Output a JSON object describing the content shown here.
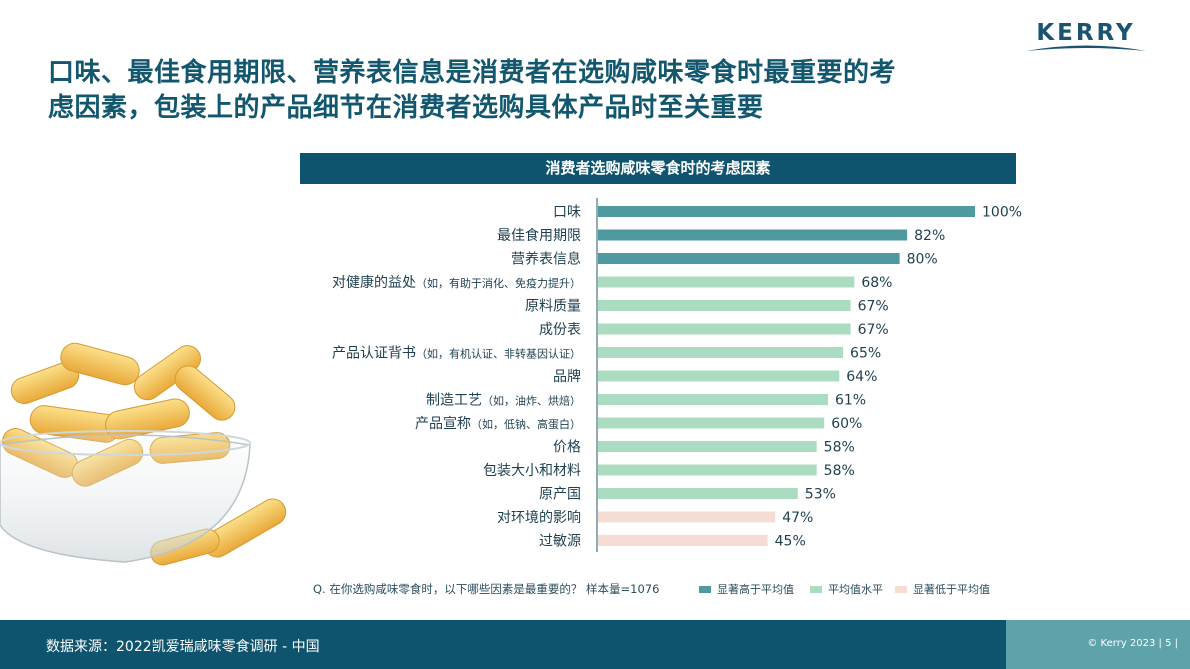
{
  "brand": {
    "logo_text": "KERRY"
  },
  "title_lines": [
    "口味、最佳食用期限、营养表信息是消费者在选购咸味零食时最重要的考",
    "虑因素，包装上的产品细节在消费者选购具体产品时至关重要"
  ],
  "chart_data": {
    "type": "bar",
    "orientation": "horizontal",
    "title": "消费者选购咸味零食时的考虑因素",
    "categories": [
      "口味",
      "最佳食用期限",
      "营养表信息",
      "对健康的益处（如，有助于消化、免疫力提升）",
      "原料质量",
      "成份表",
      "产品认证背书（如，有机认证、非转基因认证）",
      "品牌",
      "制造工艺（如，油炸、烘焙）",
      "产品宣称（如，低钠、高蛋白）",
      "价格",
      "包装大小和材料",
      "原产国",
      "对环境的影响",
      "过敏源"
    ],
    "values": [
      100,
      82,
      80,
      68,
      67,
      67,
      65,
      64,
      61,
      60,
      58,
      58,
      53,
      47,
      45
    ],
    "value_labels": [
      "100%",
      "82%",
      "80%",
      "68%",
      "67%",
      "67%",
      "65%",
      "64%",
      "61%",
      "60%",
      "58%",
      "58%",
      "53%",
      "47%",
      "45%"
    ],
    "groups": [
      "above",
      "above",
      "above",
      "avg",
      "avg",
      "avg",
      "avg",
      "avg",
      "avg",
      "avg",
      "avg",
      "avg",
      "avg",
      "below",
      "below"
    ],
    "xlim": [
      0,
      100
    ],
    "grid": false,
    "legend": {
      "placement": "bottom",
      "entries": [
        {
          "key": "above",
          "label": "显著高于平均值",
          "color": "#4e9aa0"
        },
        {
          "key": "avg",
          "label": "平均值水平",
          "color": "#abdcc2"
        },
        {
          "key": "below",
          "label": "显著低于平均值",
          "color": "#f5dcd4"
        }
      ]
    },
    "note": "Q. 在你选购咸味零食时，以下哪些因素是最重要的？ 样本量=1076"
  },
  "footer": {
    "source": "数据来源：2022凯爱瑞咸味零食调研 - 中国",
    "copyright": "© Kerry 2023 | 5 |"
  }
}
